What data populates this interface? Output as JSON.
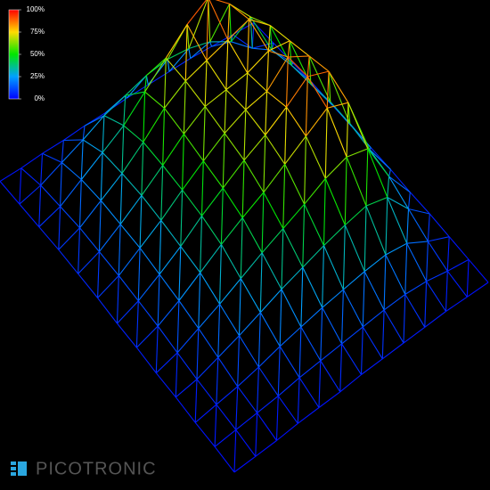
{
  "chart_data": {
    "type": "surface",
    "zlim": [
      0,
      100
    ],
    "zticks": [
      {
        "value": 0,
        "label": "0%"
      },
      {
        "value": 25,
        "label": "25%"
      },
      {
        "value": 50,
        "label": "50%"
      },
      {
        "value": 75,
        "label": "75%"
      },
      {
        "value": 100,
        "label": "100%"
      }
    ],
    "z": [
      [
        3,
        4,
        5,
        6,
        6,
        6,
        6,
        5,
        5,
        4,
        4,
        3,
        3
      ],
      [
        4,
        10,
        25,
        35,
        40,
        42,
        40,
        35,
        30,
        22,
        15,
        8,
        4
      ],
      [
        5,
        25,
        60,
        80,
        95,
        85,
        70,
        55,
        40,
        30,
        20,
        10,
        5
      ],
      [
        6,
        30,
        70,
        85,
        80,
        75,
        70,
        60,
        45,
        32,
        22,
        12,
        6
      ],
      [
        6,
        32,
        75,
        78,
        72,
        70,
        68,
        58,
        45,
        33,
        22,
        12,
        6
      ],
      [
        6,
        35,
        80,
        90,
        75,
        72,
        65,
        55,
        44,
        32,
        22,
        12,
        6
      ],
      [
        6,
        35,
        85,
        92,
        80,
        70,
        62,
        52,
        42,
        30,
        20,
        11,
        5
      ],
      [
        6,
        32,
        78,
        85,
        75,
        65,
        55,
        47,
        38,
        28,
        18,
        10,
        5
      ],
      [
        5,
        28,
        60,
        65,
        60,
        52,
        45,
        38,
        30,
        22,
        15,
        8,
        4
      ],
      [
        5,
        20,
        40,
        45,
        42,
        38,
        33,
        28,
        22,
        16,
        11,
        6,
        4
      ],
      [
        4,
        12,
        22,
        25,
        24,
        22,
        20,
        17,
        14,
        10,
        7,
        5,
        3
      ],
      [
        3,
        6,
        10,
        12,
        12,
        11,
        10,
        9,
        8,
        6,
        5,
        4,
        3
      ],
      [
        2,
        3,
        4,
        4,
        4,
        4,
        4,
        3,
        3,
        3,
        2,
        2,
        2
      ]
    ]
  },
  "logo": "PICOTRONIC"
}
